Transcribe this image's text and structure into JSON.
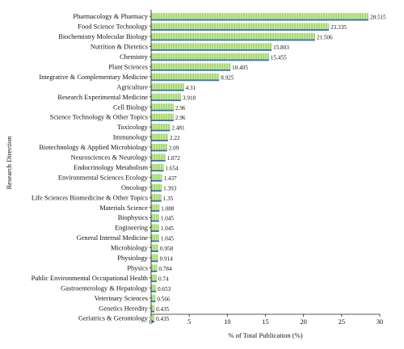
{
  "chart_data": {
    "type": "bar",
    "orientation": "horizontal",
    "xlabel": "% of Total Publication (%)",
    "ylabel": "Research Direction",
    "xlim": [
      0,
      30
    ],
    "xticks": [
      0,
      5,
      10,
      15,
      20,
      25,
      30
    ],
    "grid": false,
    "legend": "none",
    "colors": {
      "bar_fill": "#a8d86e",
      "bar_stripe": "#cfe9a6",
      "bar_edge": "#2f72b4"
    },
    "categories": [
      "Pharmacology & Pharmacy",
      "Food Science Technology",
      "Biochemistry Molecular Biology",
      "Nutrition & Dietetics",
      "Chemistry",
      "Plant Sciences",
      "Integrative & Complementary Medicine",
      "Agriculture",
      "Research Experimental Medicine",
      "Cell Biology",
      "Science Technology & Other Topics",
      "Toxicology",
      "Immunology",
      "Biotechnology & Applied Microbiology",
      "Neurosciences & Neurology",
      "Endocrinology Metabolism",
      "Environmental Sciences Ecology",
      "Oncology",
      "Life Sciences Biomedicine & Other Topics",
      "Materials Science",
      "Biophysics",
      "Engineering",
      "General Internal Medicine",
      "Microbiology",
      "Physiology",
      "Physics",
      "Public Environmental Occupational Health",
      "Gastroenterology & Hepatology",
      "Veterinary Sciences",
      "Genetics Heredity",
      "Geriatrics & Gerontology"
    ],
    "values": [
      28.515,
      23.335,
      21.506,
      15.803,
      15.455,
      10.405,
      8.925,
      4.31,
      3.918,
      2.96,
      2.96,
      2.481,
      2.22,
      2.09,
      1.872,
      1.654,
      1.437,
      1.393,
      1.35,
      1.088,
      1.045,
      1.045,
      1.045,
      0.958,
      0.914,
      0.784,
      0.74,
      0.653,
      0.566,
      0.435,
      0.435
    ],
    "value_labels": [
      "28.515",
      "23.335",
      "21.506",
      "15.803",
      "15.455",
      "10.405",
      "8.925",
      "4.31",
      "3.918",
      "2.96",
      "2.96",
      "2.481",
      "2.22",
      "2.09",
      "1.872",
      "1.654",
      "1.437",
      "1.393",
      "1.35",
      "1.088",
      "1.045",
      "1.045",
      "1.045",
      "0.958",
      "0.914",
      "0.784",
      "0.74",
      "0.653",
      "0.566",
      "0.435",
      "0.435"
    ]
  }
}
